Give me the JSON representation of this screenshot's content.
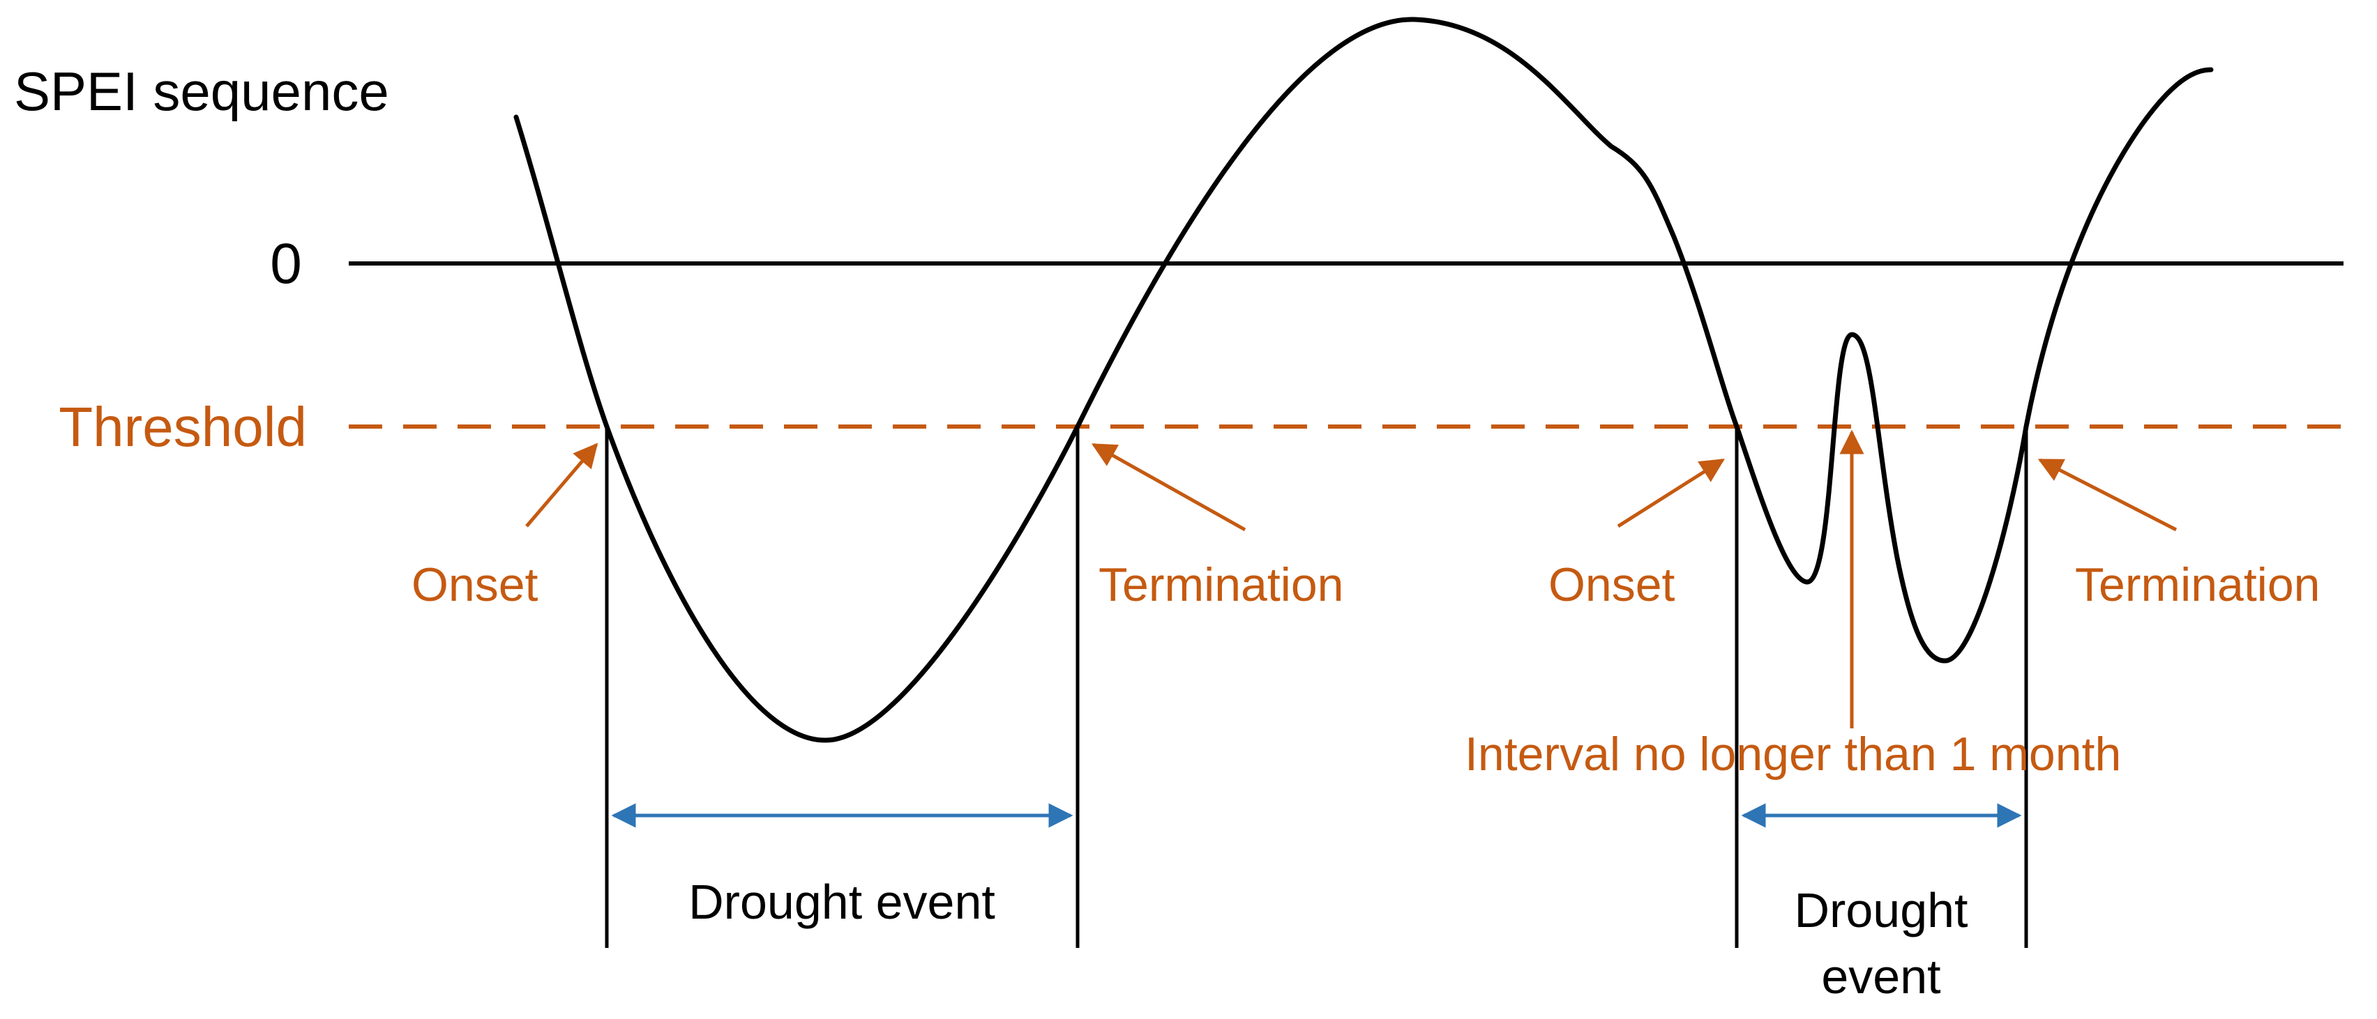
{
  "labels": {
    "y_axis": "SPEI sequence",
    "zero": "0",
    "threshold": "Threshold",
    "onset_1": "Onset",
    "termination_1": "Termination",
    "onset_2": "Onset",
    "termination_2": "Termination",
    "interval": "Interval no longer than 1 month",
    "event_1": "Drought event",
    "event_2_line1": "Drought",
    "event_2_line2": "event"
  },
  "colors": {
    "curve": "#000000",
    "axis": "#000000",
    "threshold": "#c55a11",
    "annotation": "#c55a11",
    "duration_arrow": "#2e75b6"
  }
}
